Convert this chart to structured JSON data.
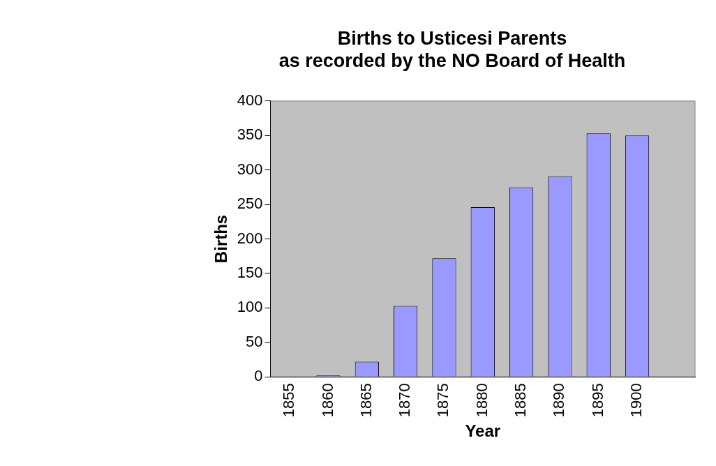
{
  "chart_data": {
    "type": "bar",
    "title": "Births to Usticesi Parents\nas recorded by the NO Board of Health",
    "xlabel": "Year",
    "ylabel": "Births",
    "categories": [
      "1855",
      "1860",
      "1865",
      "1870",
      "1875",
      "1880",
      "1885",
      "1890",
      "1895",
      "1900",
      null
    ],
    "values": [
      0,
      2,
      22,
      103,
      172,
      246,
      275,
      291,
      353,
      350,
      null
    ],
    "color": "#9999ff",
    "ylim": [
      0,
      400
    ],
    "yticks": [
      0,
      50,
      100,
      150,
      200,
      250,
      300,
      350,
      400
    ],
    "grid": false,
    "legend": false
  }
}
